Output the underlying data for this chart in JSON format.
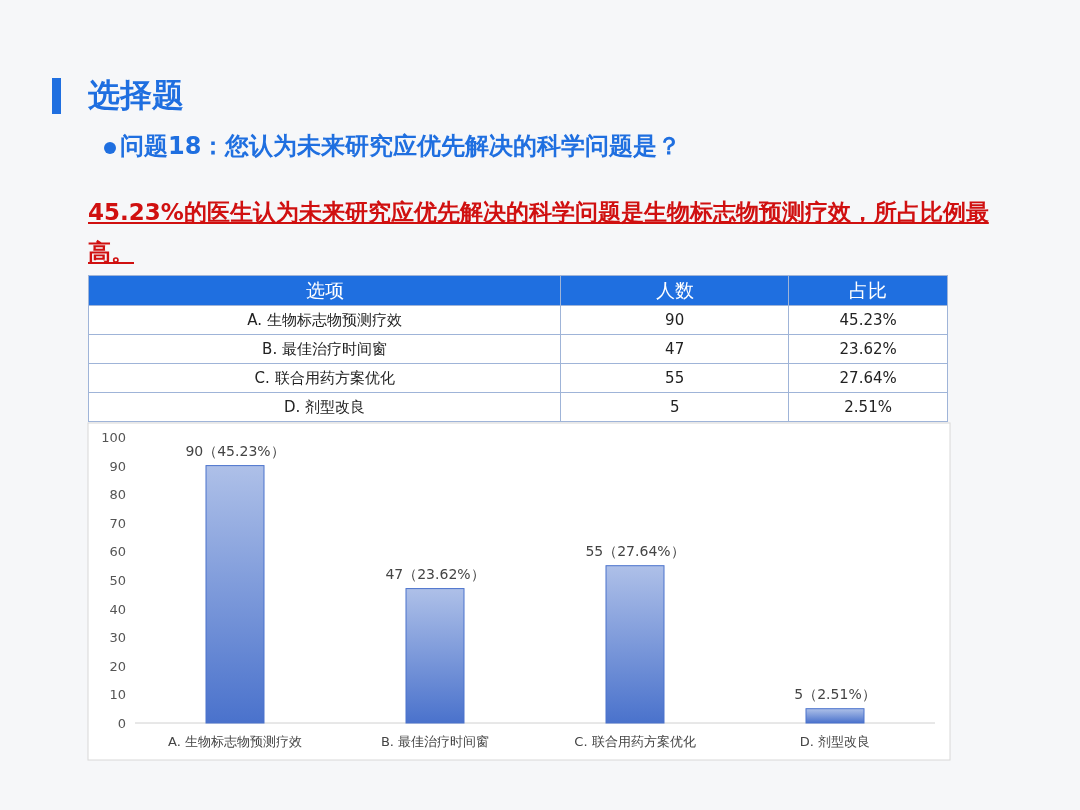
{
  "chart_data": [
    {
      "type": "other",
      "title": "选择题",
      "subtitle": "问题18：您认为未来研究应优先解决的科学问题是？",
      "annotations": [
        "45.23%的医生认为未来研究应优先解决的科学问题是生物标志物预测疗效，所占比例最高。",
        "选项",
        "人数",
        "占比",
        "A. 生物标志物预测疗效",
        "90",
        "45.23%",
        "B. 最佳治疗时间窗",
        "47",
        "23.62%",
        "C. 联合用药方案优化",
        "55",
        "27.64%",
        "D. 剂型改良",
        "5",
        "2.51%"
      ]
    },
    {
      "type": "bar",
      "categories": [
        "A. 生物标志物预测疗效",
        "B. 最佳治疗时间窗",
        "C. 联合用药方案优化",
        "D. 剂型改良"
      ],
      "values": [
        90,
        47,
        55,
        5
      ],
      "value_labels": [
        "90（45.23%）",
        "47（23.62%）",
        "55（27.64%）",
        "5（2.51%）"
      ],
      "color": "#4a72cc",
      "ylim": [
        0,
        100
      ],
      "yticks": [
        0,
        10,
        20,
        30,
        40,
        50,
        60,
        70,
        80,
        90,
        100
      ]
    }
  ]
}
